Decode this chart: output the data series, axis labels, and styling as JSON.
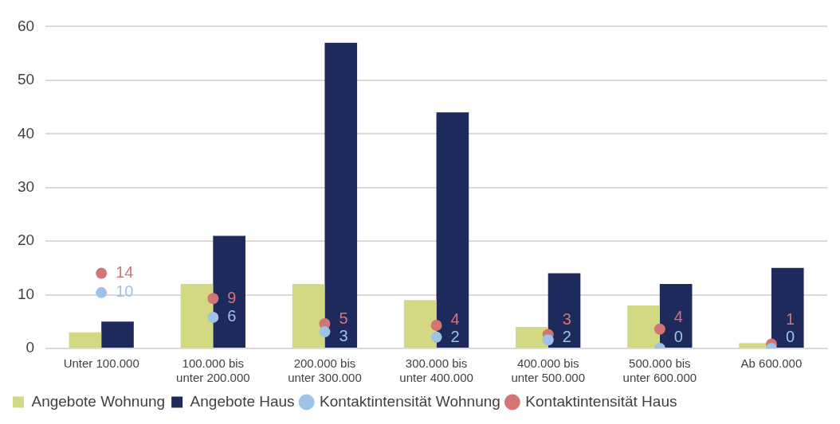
{
  "chart_data": {
    "type": "bar",
    "categories": [
      "Unter 100.000",
      "100.000 bis unter 200.000",
      "200.000 bis unter 300.000",
      "300.000 bis unter 400.000",
      "400.000 bis unter 500.000",
      "500.000 bis unter 600.000",
      "Ab 600.000"
    ],
    "series": [
      {
        "name": "Angebote Wohnung",
        "color": "#d2d982",
        "values": [
          3,
          12,
          12,
          9,
          4,
          8,
          1
        ]
      },
      {
        "name": "Angebote Haus",
        "color": "#1f2a5c",
        "values": [
          5,
          21,
          57,
          44,
          14,
          12,
          15
        ]
      },
      {
        "name": "Kontaktintensität Wohnung",
        "type": "scatter",
        "color": "#9dc3e6",
        "x": [
          "Unter 100.000",
          "100.000 bis unter 200.000",
          "200.000 bis unter 300.000",
          "300.000 bis unter 400.000",
          "400.000 bis unter 500.000",
          "500.000 bis unter 600.000",
          "Ab 600.000"
        ],
        "values": [
          10.4,
          5.8,
          3.1,
          2.1,
          1.6,
          0,
          0
        ],
        "value_labels": [
          "10",
          "6",
          "3",
          "2",
          "2",
          "0",
          "0"
        ]
      },
      {
        "name": "Kontaktintensität Haus",
        "type": "scatter",
        "color": "#d47474",
        "x": [
          "Unter 100.000",
          "100.000 bis unter 200.000",
          "200.000 bis unter 300.000",
          "300.000 bis unter 400.000",
          "400.000 bis unter 500.000",
          "500.000 bis unter 600.000",
          "Ab 600.000"
        ],
        "values": [
          14,
          9.3,
          4.6,
          4.3,
          2.6,
          3.6,
          0.8
        ],
        "value_labels": [
          "14",
          "9",
          "5",
          "4",
          "3",
          "4",
          "1"
        ]
      }
    ],
    "ylim": [
      0,
      60
    ],
    "yticks": [
      0,
      10,
      20,
      30,
      40,
      50,
      60
    ],
    "grid": "y",
    "legend": "bottom",
    "marker": "circle"
  }
}
